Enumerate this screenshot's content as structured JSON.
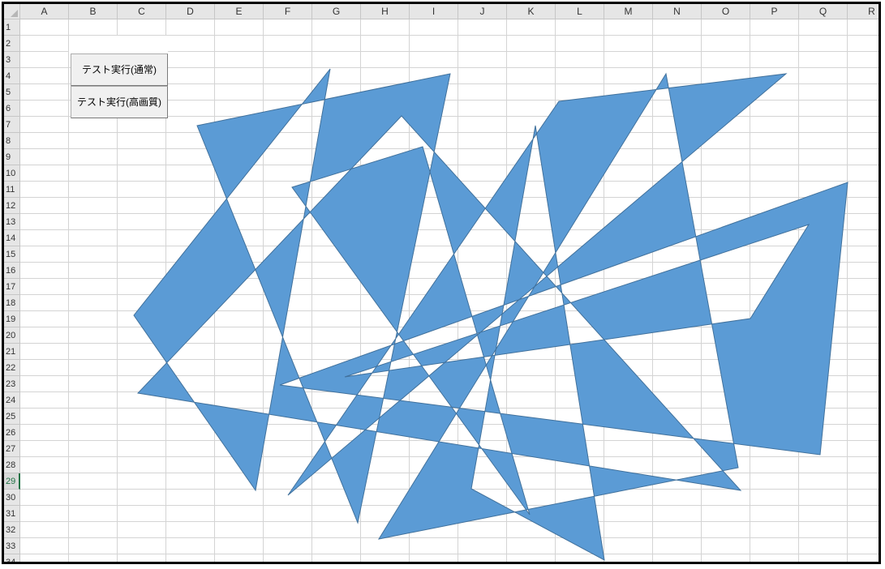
{
  "columns": [
    "A",
    "B",
    "C",
    "D",
    "E",
    "F",
    "G",
    "H",
    "I",
    "J",
    "K",
    "L",
    "M",
    "N",
    "O",
    "P",
    "Q",
    "R"
  ],
  "rows": [
    "1",
    "2",
    "3",
    "4",
    "5",
    "6",
    "7",
    "8",
    "9",
    "10",
    "11",
    "12",
    "13",
    "14",
    "15",
    "16",
    "17",
    "18",
    "19",
    "20",
    "21",
    "22",
    "23",
    "24",
    "25",
    "26",
    "27",
    "28",
    "29",
    "30",
    "31",
    "32",
    "33",
    "34"
  ],
  "active_row": "29",
  "buttons": {
    "normal": "テスト実行(通常)",
    "high_quality": "テスト実行(高画質)"
  },
  "shape_fill": "#5b9bd5",
  "shape_stroke": "#41719c"
}
